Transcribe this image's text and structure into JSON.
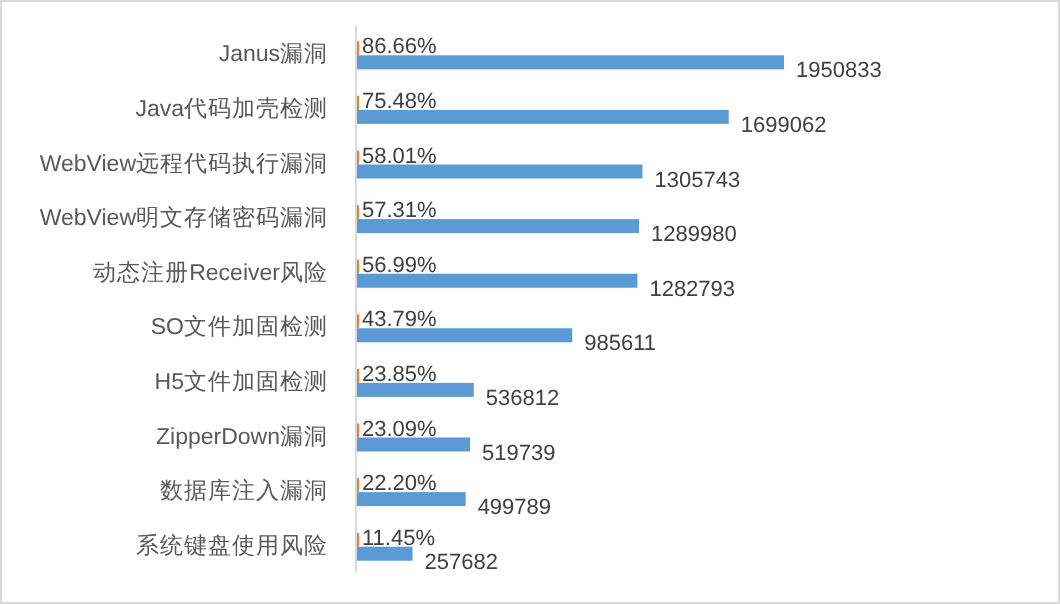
{
  "chart_data": {
    "type": "bar",
    "orientation": "horizontal",
    "categories": [
      "Janus漏洞",
      "Java代码加壳检测",
      "WebView远程代码执行漏洞",
      "WebView明文存储密码漏洞",
      "动态注册Receiver风险",
      "SO文件加固检测",
      "H5文件加固检测",
      "ZipperDown漏洞",
      "数据库注入漏洞",
      "系统键盘使用风险"
    ],
    "series": [
      {
        "color": "#ed7d31",
        "values": [
          86.66,
          75.48,
          58.01,
          57.31,
          56.99,
          43.79,
          23.85,
          23.09,
          22.2,
          11.45
        ],
        "value_labels": [
          "86.66%",
          "75.48%",
          "58.01%",
          "57.31%",
          "56.99%",
          "43.79%",
          "23.85%",
          "23.09%",
          "22.20%",
          "11.45%"
        ]
      },
      {
        "color": "#5b9bd5",
        "values": [
          1950833,
          1699062,
          1305743,
          1289980,
          1282793,
          985611,
          536812,
          519739,
          499789,
          257682
        ],
        "value_labels": [
          "1950833",
          "1699062",
          "1305743",
          "1289980",
          "1282793",
          "985611",
          "536812",
          "519739",
          "499789",
          "257682"
        ]
      }
    ]
  }
}
